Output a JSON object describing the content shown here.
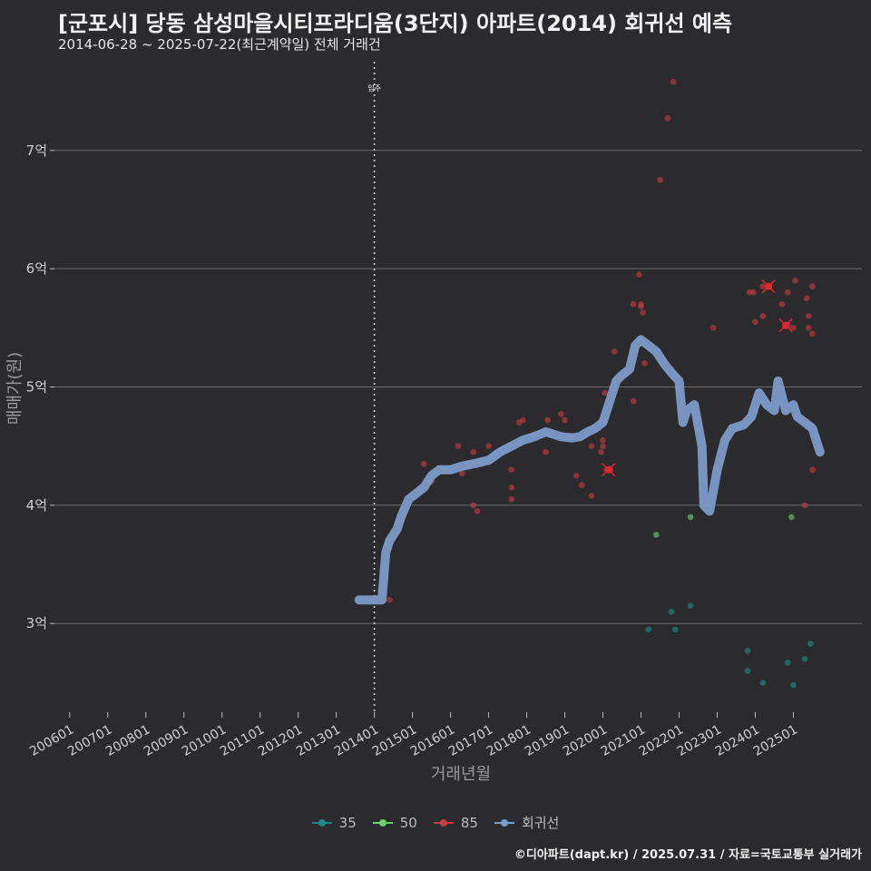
{
  "header": {
    "title": "[군포시] 당동 삼성마을시티프라디움(3단지) 아파트(2014) 회귀선 예측",
    "subtitle": "2014-06-28 ~ 2025-07-22(최근계약일) 전체 거래건"
  },
  "credit": "©디아파트(dapt.kr) / 2025.07.31 / 자료=국토교통부 실거래가",
  "colors": {
    "s35": "#1f8a85",
    "s50": "#6ccf6a",
    "s85": "#c83a45",
    "reg": "#7b9bc8",
    "grid": "#6a6a6a",
    "bg": "#2b2b2d"
  },
  "legend": [
    {
      "key": "s35",
      "label": "35"
    },
    {
      "key": "s50",
      "label": "50"
    },
    {
      "key": "s85",
      "label": "85"
    },
    {
      "key": "reg",
      "label": "회귀선"
    }
  ],
  "chart_data": {
    "type": "scatter",
    "title": "[군포시] 당동 삼성마을시티프라디움(3단지) 아파트(2014) 회귀선 예측",
    "xlabel": "거래년월",
    "ylabel": "매매가(원)",
    "xlim": [
      2005.6,
      2026.8
    ],
    "ylim": [
      2.25,
      7.75
    ],
    "x_ticks": [
      2006,
      2007,
      2008,
      2009,
      2010,
      2011,
      2012,
      2013,
      2014,
      2015,
      2016,
      2017,
      2018,
      2019,
      2020,
      2021,
      2022,
      2023,
      2024,
      2025
    ],
    "x_tick_labels": [
      "200601",
      "200701",
      "200801",
      "200901",
      "201001",
      "201101",
      "201201",
      "201301",
      "201401",
      "201501",
      "201601",
      "201701",
      "201801",
      "201901",
      "202001",
      "202101",
      "202201",
      "202301",
      "202401",
      "202501"
    ],
    "y_ticks": [
      3,
      4,
      5,
      6,
      7
    ],
    "y_tick_labels": [
      "3억",
      "4억",
      "5억",
      "6억",
      "7억"
    ],
    "annotation": {
      "x": 2014.0,
      "label": "입주"
    },
    "series": [
      {
        "name": "35",
        "points": [
          [
            2021.2,
            2.95
          ],
          [
            2021.8,
            3.1
          ],
          [
            2021.9,
            2.95
          ],
          [
            2022.3,
            3.15
          ],
          [
            2023.8,
            2.77
          ],
          [
            2023.8,
            2.6
          ],
          [
            2024.2,
            2.5
          ],
          [
            2024.85,
            2.67
          ],
          [
            2025.0,
            2.48
          ],
          [
            2025.3,
            2.7
          ],
          [
            2025.45,
            2.83
          ]
        ]
      },
      {
        "name": "50",
        "points": [
          [
            2021.4,
            3.75
          ],
          [
            2022.3,
            3.9
          ],
          [
            2024.95,
            3.9
          ]
        ]
      },
      {
        "name": "85",
        "points": [
          [
            2014.4,
            3.2
          ],
          [
            2015.2,
            4.15
          ],
          [
            2015.3,
            4.35
          ],
          [
            2015.5,
            4.2
          ],
          [
            2016.2,
            4.5
          ],
          [
            2016.3,
            4.27
          ],
          [
            2016.6,
            4.0
          ],
          [
            2016.6,
            4.45
          ],
          [
            2016.7,
            3.95
          ],
          [
            2016.8,
            4.35
          ],
          [
            2017.0,
            4.5
          ],
          [
            2017.6,
            4.3
          ],
          [
            2017.6,
            4.15
          ],
          [
            2017.6,
            4.05
          ],
          [
            2017.8,
            4.7
          ],
          [
            2017.9,
            4.72
          ],
          [
            2018.2,
            4.6
          ],
          [
            2018.5,
            4.45
          ],
          [
            2018.55,
            4.72
          ],
          [
            2018.9,
            4.77
          ],
          [
            2019.0,
            4.72
          ],
          [
            2019.3,
            4.25
          ],
          [
            2019.45,
            4.17
          ],
          [
            2019.7,
            4.08
          ],
          [
            2019.7,
            4.5
          ],
          [
            2019.95,
            4.45
          ],
          [
            2020.0,
            4.55
          ],
          [
            2020.0,
            4.5
          ],
          [
            2020.05,
            4.95
          ],
          [
            2020.1,
            4.3
          ],
          [
            2020.2,
            4.3
          ],
          [
            2020.3,
            5.3
          ],
          [
            2020.8,
            4.88
          ],
          [
            2020.8,
            5.7
          ],
          [
            2020.95,
            5.95
          ],
          [
            2021.0,
            5.7
          ],
          [
            2021.0,
            5.68
          ],
          [
            2021.05,
            5.63
          ],
          [
            2021.1,
            5.2
          ],
          [
            2021.5,
            6.75
          ],
          [
            2021.7,
            7.27
          ],
          [
            2021.85,
            7.58
          ],
          [
            2022.9,
            5.5
          ],
          [
            2023.85,
            5.8
          ],
          [
            2023.95,
            5.8
          ],
          [
            2024.0,
            5.55
          ],
          [
            2024.2,
            5.85
          ],
          [
            2024.2,
            5.6
          ],
          [
            2024.7,
            5.7
          ],
          [
            2024.85,
            5.52
          ],
          [
            2024.85,
            5.8
          ],
          [
            2025.0,
            5.5
          ],
          [
            2025.05,
            5.9
          ],
          [
            2025.3,
            4.0
          ],
          [
            2025.35,
            5.75
          ],
          [
            2025.4,
            5.6
          ],
          [
            2025.4,
            5.5
          ],
          [
            2025.5,
            5.85
          ],
          [
            2025.5,
            5.45
          ],
          [
            2025.5,
            4.3
          ]
        ]
      }
    ],
    "highlights": [
      [
        2020.15,
        4.3
      ],
      [
        2024.35,
        5.85
      ],
      [
        2024.8,
        5.52
      ]
    ],
    "regression": [
      [
        2013.6,
        3.2
      ],
      [
        2014.1,
        3.2
      ],
      [
        2014.2,
        3.2
      ],
      [
        2014.3,
        3.6
      ],
      [
        2014.4,
        3.7
      ],
      [
        2014.6,
        3.8
      ],
      [
        2014.7,
        3.9
      ],
      [
        2014.9,
        4.05
      ],
      [
        2015.1,
        4.1
      ],
      [
        2015.3,
        4.15
      ],
      [
        2015.5,
        4.25
      ],
      [
        2015.7,
        4.3
      ],
      [
        2016.0,
        4.3
      ],
      [
        2016.3,
        4.33
      ],
      [
        2016.6,
        4.35
      ],
      [
        2017.0,
        4.38
      ],
      [
        2017.3,
        4.45
      ],
      [
        2017.6,
        4.5
      ],
      [
        2017.9,
        4.55
      ],
      [
        2018.2,
        4.58
      ],
      [
        2018.5,
        4.62
      ],
      [
        2018.7,
        4.6
      ],
      [
        2018.9,
        4.58
      ],
      [
        2019.2,
        4.57
      ],
      [
        2019.4,
        4.58
      ],
      [
        2019.6,
        4.62
      ],
      [
        2019.8,
        4.65
      ],
      [
        2020.0,
        4.7
      ],
      [
        2020.2,
        4.9
      ],
      [
        2020.35,
        5.05
      ],
      [
        2020.5,
        5.1
      ],
      [
        2020.7,
        5.15
      ],
      [
        2020.85,
        5.35
      ],
      [
        2021.0,
        5.4
      ],
      [
        2021.2,
        5.35
      ],
      [
        2021.4,
        5.3
      ],
      [
        2021.6,
        5.2
      ],
      [
        2021.8,
        5.12
      ],
      [
        2022.0,
        5.05
      ],
      [
        2022.1,
        4.7
      ],
      [
        2022.2,
        4.8
      ],
      [
        2022.4,
        4.85
      ],
      [
        2022.6,
        4.5
      ],
      [
        2022.65,
        4.0
      ],
      [
        2022.8,
        3.95
      ],
      [
        2023.0,
        4.3
      ],
      [
        2023.2,
        4.55
      ],
      [
        2023.4,
        4.65
      ],
      [
        2023.7,
        4.68
      ],
      [
        2023.9,
        4.75
      ],
      [
        2024.1,
        4.95
      ],
      [
        2024.3,
        4.85
      ],
      [
        2024.5,
        4.8
      ],
      [
        2024.6,
        5.05
      ],
      [
        2024.8,
        4.8
      ],
      [
        2025.0,
        4.85
      ],
      [
        2025.1,
        4.75
      ],
      [
        2025.3,
        4.7
      ],
      [
        2025.5,
        4.65
      ],
      [
        2025.7,
        4.45
      ]
    ]
  }
}
